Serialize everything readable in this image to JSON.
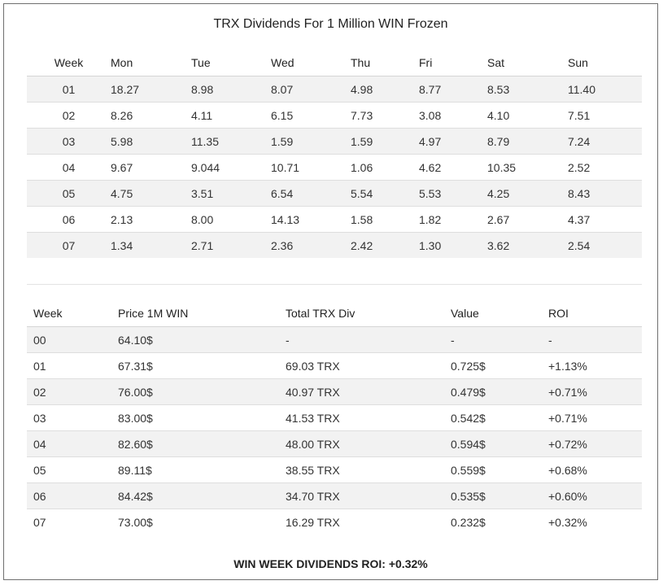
{
  "title": "TRX Dividends For 1 Million WIN Frozen",
  "daily_table": {
    "headers": [
      "Week",
      "Mon",
      "Tue",
      "Wed",
      "Thu",
      "Fri",
      "Sat",
      "Sun"
    ],
    "rows": [
      [
        "01",
        "18.27",
        "8.98",
        "8.07",
        "4.98",
        "8.77",
        "8.53",
        "11.40"
      ],
      [
        "02",
        "8.26",
        "4.11",
        "6.15",
        "7.73",
        "3.08",
        "4.10",
        "7.51"
      ],
      [
        "03",
        "5.98",
        "11.35",
        "1.59",
        "1.59",
        "4.97",
        "8.79",
        "7.24"
      ],
      [
        "04",
        "9.67",
        "9.044",
        "10.71",
        "1.06",
        "4.62",
        "10.35",
        "2.52"
      ],
      [
        "05",
        "4.75",
        "3.51",
        "6.54",
        "5.54",
        "5.53",
        "4.25",
        "8.43"
      ],
      [
        "06",
        "2.13",
        "8.00",
        "14.13",
        "1.58",
        "1.82",
        "2.67",
        "4.37"
      ],
      [
        "07",
        "1.34",
        "2.71",
        "2.36",
        "2.42",
        "1.30",
        "3.62",
        "2.54"
      ]
    ]
  },
  "summary_table": {
    "headers": [
      "Week",
      "Price 1M WIN",
      "Total TRX Div",
      "Value",
      "ROI"
    ],
    "rows": [
      [
        "00",
        "64.10$",
        "-",
        "-",
        "-"
      ],
      [
        "01",
        "67.31$",
        "69.03 TRX",
        "0.725$",
        "+1.13%"
      ],
      [
        "02",
        "76.00$",
        "40.97 TRX",
        "0.479$",
        "+0.71%"
      ],
      [
        "03",
        "83.00$",
        "41.53 TRX",
        "0.542$",
        "+0.71%"
      ],
      [
        "04",
        "82.60$",
        "48.00 TRX",
        "0.594$",
        "+0.72%"
      ],
      [
        "05",
        "89.11$",
        "38.55 TRX",
        "0.559$",
        "+0.68%"
      ],
      [
        "06",
        "84.42$",
        "34.70 TRX",
        "0.535$",
        "+0.60%"
      ],
      [
        "07",
        "73.00$",
        "16.29 TRX",
        "0.232$",
        "+0.32%"
      ]
    ]
  },
  "footer": "WIN WEEK DIVIDENDS ROI: +0.32%"
}
